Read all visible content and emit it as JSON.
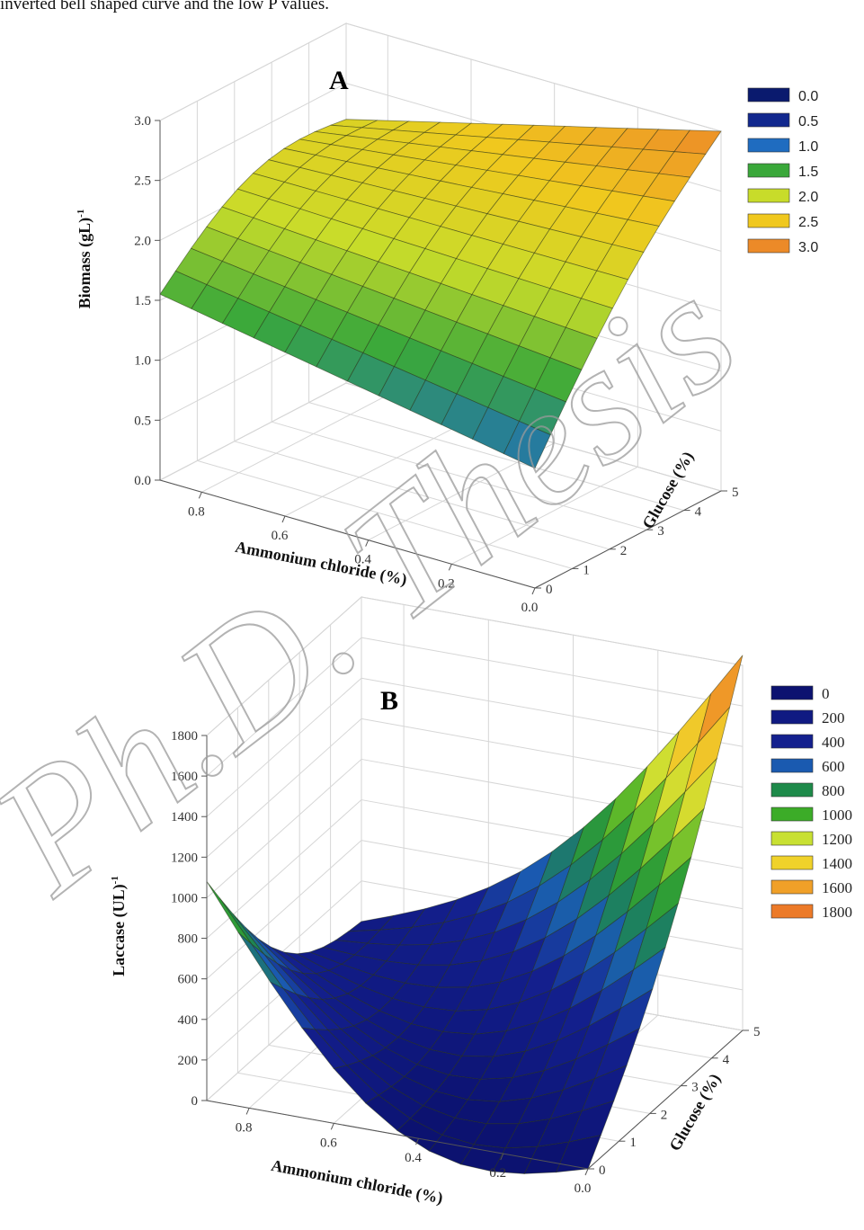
{
  "page": {
    "top_text": "inverted bell shaped curve and the low P values.",
    "watermark": "Ph.D. Thesis"
  },
  "chart_data": [
    {
      "type": "surface",
      "panel_label": "A",
      "xlabel": "Ammonium chloride (%)",
      "ylabel": "Glucose (%)",
      "zlabel": "Biomass (gL)",
      "zlabel_sup": "-1",
      "x_ticks": [
        "0.8",
        "0.6",
        "0.4",
        "0.2",
        "0.0"
      ],
      "y_ticks": [
        "0",
        "1",
        "2",
        "3",
        "4",
        "5"
      ],
      "z_ticks": [
        "0.0",
        "0.5",
        "1.0",
        "1.5",
        "2.0",
        "2.5",
        "3.0"
      ],
      "x_range": [
        0.9,
        0.0
      ],
      "y_range": [
        0,
        5
      ],
      "z_range": [
        0,
        3
      ],
      "surface_corners": {
        "x_0.9_glucose_0": 1.55,
        "x_0.0_glucose_0": 1.0,
        "x_0.9_glucose_5": 2.2,
        "x_0.0_glucose_5": 3.0
      },
      "legend": {
        "entries": [
          "0.0",
          "0.5",
          "1.0",
          "1.5",
          "2.0",
          "2.5",
          "3.0"
        ],
        "colors": [
          "#0a1a6e",
          "#12288e",
          "#1f6cc0",
          "#3aa83a",
          "#c8dc2a",
          "#f0c81e",
          "#ec8a28"
        ]
      }
    },
    {
      "type": "surface",
      "panel_label": "B",
      "xlabel": "Ammonium chloride (%)",
      "ylabel": "Glucose (%)",
      "zlabel": "Laccase (UL)",
      "zlabel_sup": "-1",
      "x_ticks": [
        "0.8",
        "0.6",
        "0.4",
        "0.2",
        "0.0"
      ],
      "y_ticks": [
        "0",
        "1",
        "2",
        "3",
        "4",
        "5"
      ],
      "z_ticks": [
        "0",
        "200",
        "400",
        "600",
        "800",
        "1000",
        "1200",
        "1400",
        "1600",
        "1800"
      ],
      "x_range": [
        0.9,
        0.0
      ],
      "y_range": [
        0,
        5
      ],
      "z_range": [
        0,
        1800
      ],
      "surface_corners": {
        "x_0.9_glucose_0": 1080,
        "x_0.0_glucose_0": 0,
        "x_0.9_glucose_5": 200,
        "x_0.0_glucose_5": 1850
      },
      "legend": {
        "entries": [
          "0",
          "200",
          "400",
          "600",
          "800",
          "1000",
          "1200",
          "1400",
          "1600",
          "1800"
        ],
        "colors": [
          "#0c1270",
          "#101a82",
          "#14208e",
          "#1a5ab0",
          "#1e8a4a",
          "#3cac28",
          "#c8e032",
          "#f0d22a",
          "#f0a028",
          "#ec7a28"
        ]
      }
    }
  ]
}
